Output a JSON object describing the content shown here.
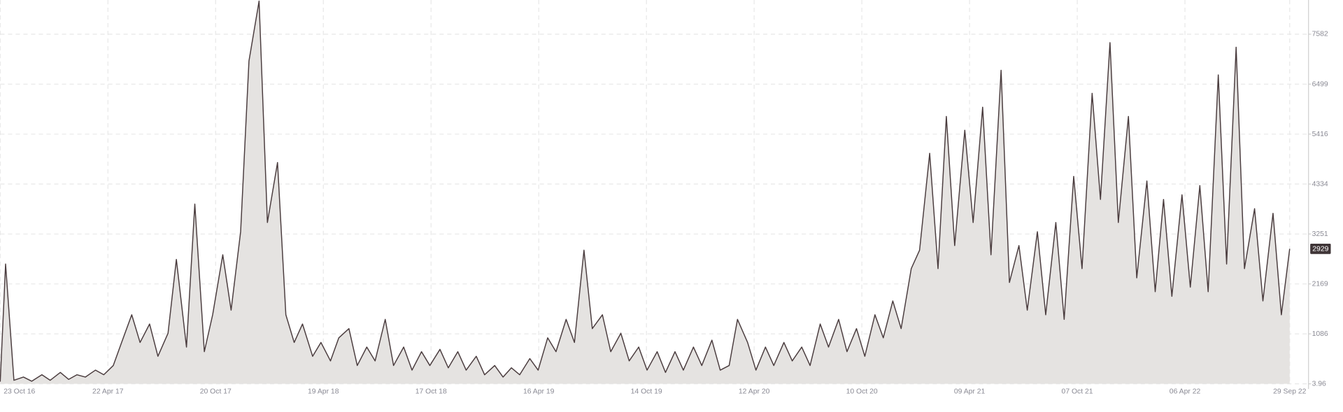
{
  "chart_data": {
    "type": "area",
    "x": [
      "2016-10-23",
      "2016-11-01",
      "2016-11-15",
      "2016-12-01",
      "2016-12-15",
      "2017-01-01",
      "2017-01-15",
      "2017-02-01",
      "2017-02-15",
      "2017-03-01",
      "2017-03-15",
      "2017-04-01",
      "2017-04-15",
      "2017-05-01",
      "2017-05-15",
      "2017-06-01",
      "2017-06-15",
      "2017-07-01",
      "2017-07-15",
      "2017-08-01",
      "2017-08-15",
      "2017-09-01",
      "2017-09-15",
      "2017-10-01",
      "2017-10-15",
      "2017-11-01",
      "2017-11-15",
      "2017-12-01",
      "2017-12-15",
      "2018-01-01",
      "2018-01-15",
      "2018-02-01",
      "2018-02-15",
      "2018-03-01",
      "2018-03-15",
      "2018-04-01",
      "2018-04-15",
      "2018-05-01",
      "2018-05-15",
      "2018-06-01",
      "2018-06-15",
      "2018-07-01",
      "2018-07-15",
      "2018-08-01",
      "2018-08-15",
      "2018-09-01",
      "2018-09-15",
      "2018-10-01",
      "2018-10-15",
      "2018-11-01",
      "2018-11-15",
      "2018-12-01",
      "2018-12-15",
      "2019-01-01",
      "2019-01-15",
      "2019-02-01",
      "2019-02-15",
      "2019-03-01",
      "2019-03-15",
      "2019-04-01",
      "2019-04-15",
      "2019-05-01",
      "2019-05-15",
      "2019-06-01",
      "2019-06-15",
      "2019-07-01",
      "2019-07-15",
      "2019-08-01",
      "2019-08-15",
      "2019-09-01",
      "2019-09-15",
      "2019-10-01",
      "2019-10-15",
      "2019-11-01",
      "2019-11-15",
      "2019-12-01",
      "2019-12-15",
      "2020-01-01",
      "2020-01-15",
      "2020-02-01",
      "2020-02-15",
      "2020-03-01",
      "2020-03-15",
      "2020-04-01",
      "2020-04-15",
      "2020-05-01",
      "2020-05-15",
      "2020-06-01",
      "2020-06-15",
      "2020-07-01",
      "2020-07-15",
      "2020-08-01",
      "2020-08-15",
      "2020-09-01",
      "2020-09-15",
      "2020-10-01",
      "2020-10-15",
      "2020-11-01",
      "2020-11-15",
      "2020-12-01",
      "2020-12-15",
      "2021-01-01",
      "2021-01-15",
      "2021-02-01",
      "2021-02-15",
      "2021-03-01",
      "2021-03-15",
      "2021-04-01",
      "2021-04-15",
      "2021-05-01",
      "2021-05-15",
      "2021-06-01",
      "2021-06-15",
      "2021-07-01",
      "2021-07-15",
      "2021-08-01",
      "2021-08-15",
      "2021-09-01",
      "2021-09-15",
      "2021-10-01",
      "2021-10-15",
      "2021-11-01",
      "2021-11-15",
      "2021-12-01",
      "2021-12-15",
      "2022-01-01",
      "2022-01-15",
      "2022-02-01",
      "2022-02-15",
      "2022-03-01",
      "2022-03-15",
      "2022-04-01",
      "2022-04-15",
      "2022-05-01",
      "2022-05-15",
      "2022-06-01",
      "2022-06-15",
      "2022-07-01",
      "2022-07-15",
      "2022-08-01",
      "2022-08-15",
      "2022-09-01",
      "2022-09-15",
      "2022-09-29"
    ],
    "values": [
      50,
      2600,
      80,
      150,
      60,
      200,
      80,
      250,
      100,
      200,
      150,
      300,
      200,
      400,
      900,
      1500,
      900,
      1300,
      600,
      1100,
      2700,
      800,
      3900,
      700,
      1500,
      2800,
      1600,
      3300,
      7000,
      8300,
      3500,
      4800,
      1500,
      900,
      1300,
      600,
      900,
      500,
      1000,
      1200,
      400,
      800,
      500,
      1400,
      400,
      800,
      300,
      700,
      400,
      750,
      350,
      700,
      300,
      600,
      200,
      400,
      150,
      350,
      200,
      550,
      300,
      1000,
      700,
      1400,
      900,
      2900,
      1200,
      1500,
      700,
      1100,
      500,
      800,
      300,
      700,
      250,
      700,
      300,
      800,
      400,
      950,
      300,
      400,
      1400,
      900,
      300,
      800,
      400,
      900,
      500,
      800,
      400,
      1300,
      800,
      1400,
      700,
      1200,
      600,
      1500,
      1000,
      1800,
      1200,
      2500,
      2900,
      5000,
      2500,
      5800,
      3000,
      5500,
      3500,
      6000,
      2800,
      6800,
      2200,
      3000,
      1600,
      3300,
      1500,
      3500,
      1400,
      4500,
      2500,
      6300,
      4000,
      7400,
      3500,
      5800,
      2300,
      4400,
      2000,
      4000,
      1900,
      4100,
      2100,
      4300,
      2000,
      6700,
      2600,
      7300,
      2500,
      3800,
      1800,
      3700,
      1500,
      2929
    ],
    "line_color": "#4a3c3e",
    "fill_color": "#e5e3e1",
    "xlim": [
      "2016-10-23",
      "2022-09-29"
    ],
    "xticks": [
      {
        "value": "2016-10-23",
        "label": "23 Oct 16"
      },
      {
        "value": "2017-04-22",
        "label": "22 Apr 17"
      },
      {
        "value": "2017-10-20",
        "label": "20 Oct 17"
      },
      {
        "value": "2018-04-19",
        "label": "19 Apr 18"
      },
      {
        "value": "2018-10-17",
        "label": "17 Oct 18"
      },
      {
        "value": "2019-04-16",
        "label": "16 Apr 19"
      },
      {
        "value": "2019-10-14",
        "label": "14 Oct 19"
      },
      {
        "value": "2020-04-12",
        "label": "12 Apr 20"
      },
      {
        "value": "2020-10-10",
        "label": "10 Oct 20"
      },
      {
        "value": "2021-04-09",
        "label": "09 Apr 21"
      },
      {
        "value": "2021-10-07",
        "label": "07 Oct 21"
      },
      {
        "value": "2022-04-06",
        "label": "06 Apr 22"
      },
      {
        "value": "2022-09-29",
        "label": "29 Sep 22"
      }
    ],
    "ylim": [
      3.96,
      8323
    ],
    "yticks": [
      3.96,
      1086,
      2169,
      3251,
      4334,
      5416,
      6499,
      7582
    ],
    "grid": true
  }
}
